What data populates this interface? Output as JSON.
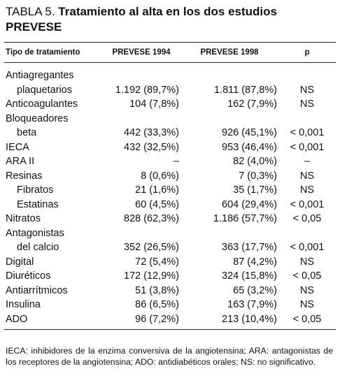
{
  "title": {
    "number": "TABLA 5.",
    "text": "Tratamiento al alta en los dos estudios PREVESE"
  },
  "table": {
    "header": [
      "Tipo de tratamiento",
      "PREVESE 1994",
      "PREVESE 1998",
      "p"
    ],
    "rows": [
      {
        "label": [
          "Antiagregantes",
          "plaquetarios"
        ],
        "cells": [
          "1.192 (89,7%)",
          "1.811 (87,8%)",
          "NS"
        ]
      },
      {
        "label": [
          "Anticoagulantes"
        ],
        "cells": [
          "104 (7,8%)",
          "162 (7,9%)",
          "NS"
        ]
      },
      {
        "label": [
          "Bloqueadores",
          "beta"
        ],
        "cells": [
          "442 (33,3%)",
          "926 (45,1%)",
          "< 0,001"
        ]
      },
      {
        "label": [
          "IECA"
        ],
        "cells": [
          "432 (32,5%)",
          "953 (46,4%)",
          "< 0,001"
        ]
      },
      {
        "label": [
          "ARA II"
        ],
        "cells": [
          "–",
          "82 (4,0%)",
          "–"
        ]
      },
      {
        "label": [
          "Resinas"
        ],
        "cells": [
          "8 (0,6%)",
          "7 (0,3%)",
          "NS"
        ],
        "subrows": [
          {
            "label": [
              "Fibratos"
            ],
            "cells": [
              "21 (1,6%)",
              "35 (1,7%)",
              "NS"
            ]
          },
          {
            "label": [
              "Estatinas"
            ],
            "cells": [
              "60 (4,5%)",
              "604 (29,4%)",
              "< 0,001"
            ]
          }
        ]
      },
      {
        "label": [
          "Nitratos"
        ],
        "cells": [
          "828 (62,3%)",
          "1.186 (57,7%)",
          "< 0,05"
        ]
      },
      {
        "label": [
          "Antagonistas",
          "del calcio"
        ],
        "cells": [
          "352 (26,5%)",
          "363 (17,7%)",
          "< 0,001"
        ]
      },
      {
        "label": [
          "Digital"
        ],
        "cells": [
          "72 (5,4%)",
          "87 (4,2%)",
          "NS"
        ]
      },
      {
        "label": [
          "Diuréticos"
        ],
        "cells": [
          "172 (12,9%)",
          "324 (15,8%)",
          "< 0,05"
        ]
      },
      {
        "label": [
          "Antiarrítmicos"
        ],
        "cells": [
          "51 (3,8%)",
          "65 (3,2%)",
          "NS"
        ]
      },
      {
        "label": [
          "Insulina"
        ],
        "cells": [
          "86 (6,5%)",
          "163 (7,9%)",
          "NS"
        ]
      },
      {
        "label": [
          "ADO"
        ],
        "cells": [
          "96 (7,2%)",
          "213 (10,4%)",
          "< 0,05"
        ]
      }
    ]
  },
  "footnote": "IECA: inhibidores de la enzima conversiva de la angiotensina; ARA: antagonistas de los receptores de la angiotensina; ADO: antidiabéticos orales; NS: no significativo."
}
